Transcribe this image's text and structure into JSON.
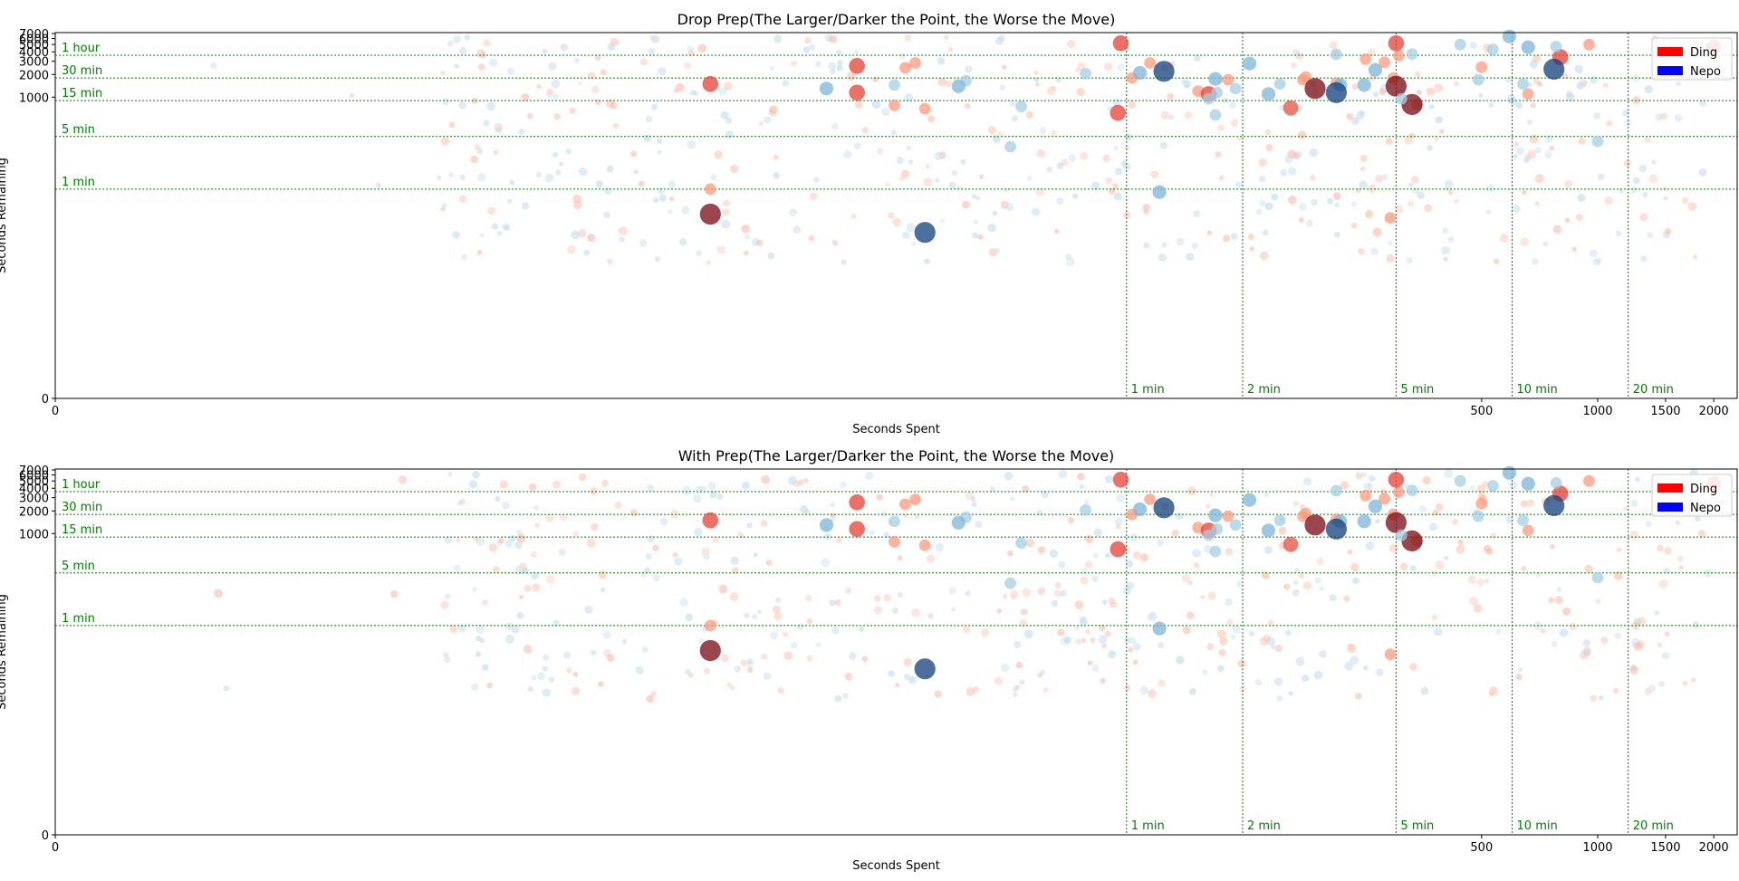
{
  "chart_data": [
    {
      "type": "scatter",
      "title": "Drop Prep(The Larger/Darker the Point, the Worse the Move)",
      "xlabel": "Seconds Spent",
      "ylabel": "Seconds Remaining",
      "x_scale": "symlog",
      "y_scale": "symlog",
      "xlim": [
        0,
        2300
      ],
      "ylim": [
        0,
        7200
      ],
      "x_ticks": [
        {
          "value": 0,
          "label": "0"
        },
        {
          "value": 500,
          "label": "500"
        },
        {
          "value": 1000,
          "label": "1000"
        },
        {
          "value": 1500,
          "label": "1500"
        },
        {
          "value": 2000,
          "label": "2000"
        }
      ],
      "y_ticks": [
        {
          "value": 0,
          "label": "0"
        },
        {
          "value": 1000,
          "label": "1000"
        },
        {
          "value": 2000,
          "label": "2000"
        },
        {
          "value": 3000,
          "label": "3000"
        },
        {
          "value": 4000,
          "label": "4000"
        },
        {
          "value": 5000,
          "label": "5000"
        },
        {
          "value": 6000,
          "label": "6000"
        },
        {
          "value": 7000,
          "label": "7000"
        }
      ],
      "x_reference_lines": [
        {
          "value": 60,
          "label": "1 min"
        },
        {
          "value": 120,
          "label": "2 min"
        },
        {
          "value": 300,
          "label": "5 min"
        },
        {
          "value": 600,
          "label": "10 min"
        },
        {
          "value": 1200,
          "label": "20 min"
        }
      ],
      "y_reference_lines": [
        {
          "value": 60,
          "label": "1 min"
        },
        {
          "value": 300,
          "label": "5 min"
        },
        {
          "value": 900,
          "label": "15 min"
        },
        {
          "value": 1800,
          "label": "30 min"
        },
        {
          "value": 3600,
          "label": "1 hour"
        }
      ],
      "reference_line_color": "#008000",
      "legend": {
        "position": "top-right",
        "entries": [
          {
            "name": "Ding",
            "color": "#ff0000"
          },
          {
            "name": "Nepo",
            "color": "#0000ff"
          }
        ]
      },
      "series": [
        {
          "name": "Ding",
          "colormap": "Reds",
          "points": [
            {
              "x": 5,
              "y": 1500,
              "s": 0.6
            },
            {
              "x": 5,
              "y": 28,
              "s": 0.95
            },
            {
              "x": 12,
              "y": 2600,
              "s": 0.6
            },
            {
              "x": 12,
              "y": 1150,
              "s": 0.6
            },
            {
              "x": 58,
              "y": 5200,
              "s": 0.6
            },
            {
              "x": 57,
              "y": 620,
              "s": 0.6
            },
            {
              "x": 98,
              "y": 1100,
              "s": 0.6
            },
            {
              "x": 160,
              "y": 720,
              "s": 0.55
            },
            {
              "x": 185,
              "y": 1300,
              "s": 0.95
            },
            {
              "x": 300,
              "y": 5200,
              "s": 0.6
            },
            {
              "x": 300,
              "y": 1400,
              "s": 0.95
            },
            {
              "x": 330,
              "y": 800,
              "s": 0.95
            },
            {
              "x": 800,
              "y": 3400,
              "s": 0.6
            },
            {
              "x": 2000,
              "y": 4600,
              "s": 0.55
            },
            {
              "x": 295,
              "y": 1800,
              "s": 0.3
            },
            {
              "x": 290,
              "y": 25,
              "s": 0.3
            },
            {
              "x": 950,
              "y": 5000,
              "s": 0.3
            },
            {
              "x": 500,
              "y": 2500,
              "s": 0.3
            },
            {
              "x": 660,
              "y": 1100,
              "s": 0.3
            },
            {
              "x": 17,
              "y": 2850,
              "s": 0.3
            },
            {
              "x": 16,
              "y": 2450,
              "s": 0.3
            },
            {
              "x": 18,
              "y": 700,
              "s": 0.3
            },
            {
              "x": 15,
              "y": 780,
              "s": 0.3
            },
            {
              "x": 62,
              "y": 1800,
              "s": 0.3
            },
            {
              "x": 69,
              "y": 2850,
              "s": 0.3
            },
            {
              "x": 110,
              "y": 1700,
              "s": 0.3
            },
            {
              "x": 175,
              "y": 1850,
              "s": 0.3
            },
            {
              "x": 210,
              "y": 1550,
              "s": 0.3
            },
            {
              "x": 250,
              "y": 3200,
              "s": 0.3
            },
            {
              "x": 280,
              "y": 2900,
              "s": 0.3
            },
            {
              "x": 305,
              "y": 3550,
              "s": 0.3
            },
            {
              "x": 340,
              "y": 800,
              "s": 0.3
            },
            {
              "x": 172,
              "y": 1700,
              "s": 0.3
            },
            {
              "x": 5,
              "y": 60,
              "s": 0.3
            },
            {
              "x": 92,
              "y": 1200,
              "s": 0.3
            }
          ]
        },
        {
          "name": "Nepo",
          "colormap": "Blues",
          "points": [
            {
              "x": 18,
              "y": 16,
              "s": 0.95
            },
            {
              "x": 10,
              "y": 1300,
              "s": 0.45
            },
            {
              "x": 22,
              "y": 1400,
              "s": 0.45
            },
            {
              "x": 65,
              "y": 2100,
              "s": 0.45
            },
            {
              "x": 75,
              "y": 2200,
              "s": 0.95
            },
            {
              "x": 73,
              "y": 55,
              "s": 0.45
            },
            {
              "x": 102,
              "y": 1750,
              "s": 0.45
            },
            {
              "x": 125,
              "y": 2800,
              "s": 0.45
            },
            {
              "x": 140,
              "y": 1100,
              "s": 0.45
            },
            {
              "x": 210,
              "y": 1150,
              "s": 0.95
            },
            {
              "x": 215,
              "y": 1450,
              "s": 0.45
            },
            {
              "x": 248,
              "y": 1450,
              "s": 0.45
            },
            {
              "x": 265,
              "y": 2300,
              "s": 0.45
            },
            {
              "x": 590,
              "y": 6400,
              "s": 0.45
            },
            {
              "x": 660,
              "y": 4600,
              "s": 0.45
            },
            {
              "x": 770,
              "y": 2350,
              "s": 0.95
            },
            {
              "x": 535,
              "y": 4300,
              "s": 0.3
            },
            {
              "x": 440,
              "y": 5000,
              "s": 0.3
            },
            {
              "x": 780,
              "y": 4700,
              "s": 0.3
            },
            {
              "x": 640,
              "y": 1500,
              "s": 0.3
            },
            {
              "x": 490,
              "y": 1700,
              "s": 0.3
            },
            {
              "x": 210,
              "y": 3700,
              "s": 0.3
            },
            {
              "x": 23,
              "y": 1650,
              "s": 0.3
            },
            {
              "x": 30,
              "y": 220,
              "s": 0.3
            },
            {
              "x": 32,
              "y": 750,
              "s": 0.3
            },
            {
              "x": 15,
              "y": 1450,
              "s": 0.3
            },
            {
              "x": 103,
              "y": 1150,
              "s": 0.3
            },
            {
              "x": 98,
              "y": 950,
              "s": 0.3
            },
            {
              "x": 115,
              "y": 1300,
              "s": 0.3
            },
            {
              "x": 102,
              "y": 580,
              "s": 0.3
            },
            {
              "x": 330,
              "y": 3750,
              "s": 0.3
            },
            {
              "x": 1000,
              "y": 260,
              "s": 0.3
            },
            {
              "x": 310,
              "y": 950,
              "s": 0.3
            },
            {
              "x": 47,
              "y": 2050,
              "s": 0.3
            },
            {
              "x": 150,
              "y": 1500,
              "s": 0.3
            }
          ]
        }
      ]
    },
    {
      "type": "scatter",
      "title": "With Prep(The Larger/Darker the Point, the Worse the Move)",
      "xlabel": "Seconds Spent",
      "ylabel": "Seconds Remaining",
      "x_scale": "symlog",
      "y_scale": "symlog",
      "xlim": [
        0,
        2300
      ],
      "ylim": [
        0,
        7200
      ],
      "x_ticks": [
        {
          "value": 0,
          "label": "0"
        },
        {
          "value": 500,
          "label": "500"
        },
        {
          "value": 1000,
          "label": "1000"
        },
        {
          "value": 1500,
          "label": "1500"
        },
        {
          "value": 2000,
          "label": "2000"
        }
      ],
      "y_ticks": [
        {
          "value": 0,
          "label": "0"
        },
        {
          "value": 1000,
          "label": "1000"
        },
        {
          "value": 2000,
          "label": "2000"
        },
        {
          "value": 3000,
          "label": "3000"
        },
        {
          "value": 4000,
          "label": "4000"
        },
        {
          "value": 5000,
          "label": "5000"
        },
        {
          "value": 6000,
          "label": "6000"
        },
        {
          "value": 7000,
          "label": "7000"
        }
      ],
      "x_reference_lines": [
        {
          "value": 60,
          "label": "1 min"
        },
        {
          "value": 120,
          "label": "2 min"
        },
        {
          "value": 300,
          "label": "5 min"
        },
        {
          "value": 600,
          "label": "10 min"
        },
        {
          "value": 1200,
          "label": "20 min"
        }
      ],
      "y_reference_lines": [
        {
          "value": 60,
          "label": "1 min"
        },
        {
          "value": 300,
          "label": "5 min"
        },
        {
          "value": 900,
          "label": "15 min"
        },
        {
          "value": 1800,
          "label": "30 min"
        },
        {
          "value": 3600,
          "label": "1 hour"
        }
      ],
      "reference_line_color": "#008000",
      "legend": {
        "position": "top-right",
        "entries": [
          {
            "name": "Ding",
            "color": "#ff0000"
          },
          {
            "name": "Nepo",
            "color": "#0000ff"
          }
        ]
      },
      "series": [
        {
          "name": "Ding",
          "colormap": "Reds",
          "points": [
            {
              "x": 5,
              "y": 1500,
              "s": 0.6
            },
            {
              "x": 5,
              "y": 28,
              "s": 0.95
            },
            {
              "x": 12,
              "y": 2600,
              "s": 0.6
            },
            {
              "x": 12,
              "y": 1150,
              "s": 0.6
            },
            {
              "x": 58,
              "y": 5200,
              "s": 0.6
            },
            {
              "x": 57,
              "y": 620,
              "s": 0.6
            },
            {
              "x": 98,
              "y": 1100,
              "s": 0.6
            },
            {
              "x": 160,
              "y": 720,
              "s": 0.55
            },
            {
              "x": 185,
              "y": 1300,
              "s": 0.95
            },
            {
              "x": 300,
              "y": 5200,
              "s": 0.6
            },
            {
              "x": 300,
              "y": 1400,
              "s": 0.95
            },
            {
              "x": 330,
              "y": 800,
              "s": 0.95
            },
            {
              "x": 800,
              "y": 3400,
              "s": 0.6
            },
            {
              "x": 2000,
              "y": 4600,
              "s": 0.55
            },
            {
              "x": 295,
              "y": 1800,
              "s": 0.3
            },
            {
              "x": 290,
              "y": 25,
              "s": 0.3
            },
            {
              "x": 950,
              "y": 5000,
              "s": 0.3
            },
            {
              "x": 500,
              "y": 2500,
              "s": 0.3
            },
            {
              "x": 660,
              "y": 1100,
              "s": 0.3
            },
            {
              "x": 17,
              "y": 2850,
              "s": 0.3
            },
            {
              "x": 16,
              "y": 2450,
              "s": 0.3
            },
            {
              "x": 18,
              "y": 700,
              "s": 0.3
            },
            {
              "x": 15,
              "y": 780,
              "s": 0.3
            },
            {
              "x": 62,
              "y": 1800,
              "s": 0.3
            },
            {
              "x": 69,
              "y": 2850,
              "s": 0.3
            },
            {
              "x": 110,
              "y": 1700,
              "s": 0.3
            },
            {
              "x": 175,
              "y": 1850,
              "s": 0.3
            },
            {
              "x": 210,
              "y": 1550,
              "s": 0.3
            },
            {
              "x": 250,
              "y": 3200,
              "s": 0.3
            },
            {
              "x": 280,
              "y": 2900,
              "s": 0.3
            },
            {
              "x": 305,
              "y": 3550,
              "s": 0.3
            },
            {
              "x": 340,
              "y": 800,
              "s": 0.3
            },
            {
              "x": 172,
              "y": 1700,
              "s": 0.3
            },
            {
              "x": 5,
              "y": 60,
              "s": 0.3
            },
            {
              "x": 92,
              "y": 1200,
              "s": 0.3
            }
          ]
        },
        {
          "name": "Nepo",
          "colormap": "Blues",
          "points": [
            {
              "x": 18,
              "y": 16,
              "s": 0.95
            },
            {
              "x": 10,
              "y": 1300,
              "s": 0.45
            },
            {
              "x": 22,
              "y": 1400,
              "s": 0.45
            },
            {
              "x": 65,
              "y": 2100,
              "s": 0.45
            },
            {
              "x": 75,
              "y": 2200,
              "s": 0.95
            },
            {
              "x": 73,
              "y": 55,
              "s": 0.45
            },
            {
              "x": 102,
              "y": 1750,
              "s": 0.45
            },
            {
              "x": 125,
              "y": 2800,
              "s": 0.45
            },
            {
              "x": 140,
              "y": 1100,
              "s": 0.45
            },
            {
              "x": 210,
              "y": 1150,
              "s": 0.95
            },
            {
              "x": 215,
              "y": 1450,
              "s": 0.45
            },
            {
              "x": 248,
              "y": 1450,
              "s": 0.45
            },
            {
              "x": 265,
              "y": 2300,
              "s": 0.45
            },
            {
              "x": 590,
              "y": 6400,
              "s": 0.45
            },
            {
              "x": 660,
              "y": 4600,
              "s": 0.45
            },
            {
              "x": 770,
              "y": 2350,
              "s": 0.95
            },
            {
              "x": 535,
              "y": 4300,
              "s": 0.3
            },
            {
              "x": 440,
              "y": 5000,
              "s": 0.3
            },
            {
              "x": 780,
              "y": 4700,
              "s": 0.3
            },
            {
              "x": 640,
              "y": 1500,
              "s": 0.3
            },
            {
              "x": 490,
              "y": 1700,
              "s": 0.3
            },
            {
              "x": 210,
              "y": 3700,
              "s": 0.3
            },
            {
              "x": 23,
              "y": 1650,
              "s": 0.3
            },
            {
              "x": 30,
              "y": 220,
              "s": 0.3
            },
            {
              "x": 32,
              "y": 750,
              "s": 0.3
            },
            {
              "x": 15,
              "y": 1450,
              "s": 0.3
            },
            {
              "x": 103,
              "y": 1150,
              "s": 0.3
            },
            {
              "x": 98,
              "y": 950,
              "s": 0.3
            },
            {
              "x": 115,
              "y": 1300,
              "s": 0.3
            },
            {
              "x": 102,
              "y": 580,
              "s": 0.3
            },
            {
              "x": 330,
              "y": 3750,
              "s": 0.3
            },
            {
              "x": 1000,
              "y": 260,
              "s": 0.3
            },
            {
              "x": 310,
              "y": 950,
              "s": 0.3
            },
            {
              "x": 47,
              "y": 2050,
              "s": 0.3
            },
            {
              "x": 150,
              "y": 1500,
              "s": 0.3
            }
          ]
        }
      ]
    }
  ]
}
